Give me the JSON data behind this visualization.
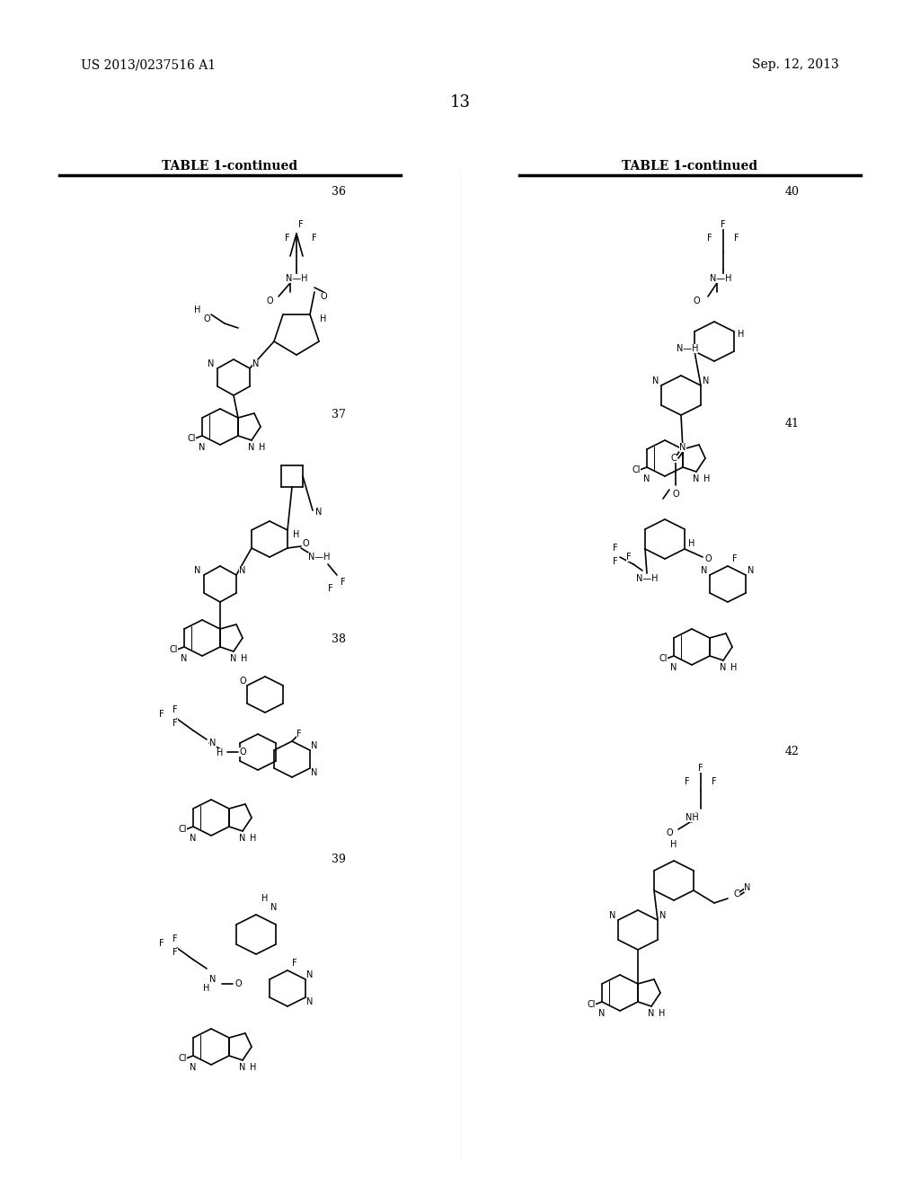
{
  "page_number": "13",
  "left_header": "US 2013/0237516 A1",
  "right_header": "Sep. 12, 2013",
  "table_label": "TABLE 1-continued",
  "background_color": "#ffffff",
  "compound_numbers_left": [
    "36",
    "37",
    "38",
    "39"
  ],
  "compound_numbers_right": [
    "40",
    "41",
    "42"
  ],
  "figsize": [
    10.24,
    13.2
  ],
  "dpi": 100
}
